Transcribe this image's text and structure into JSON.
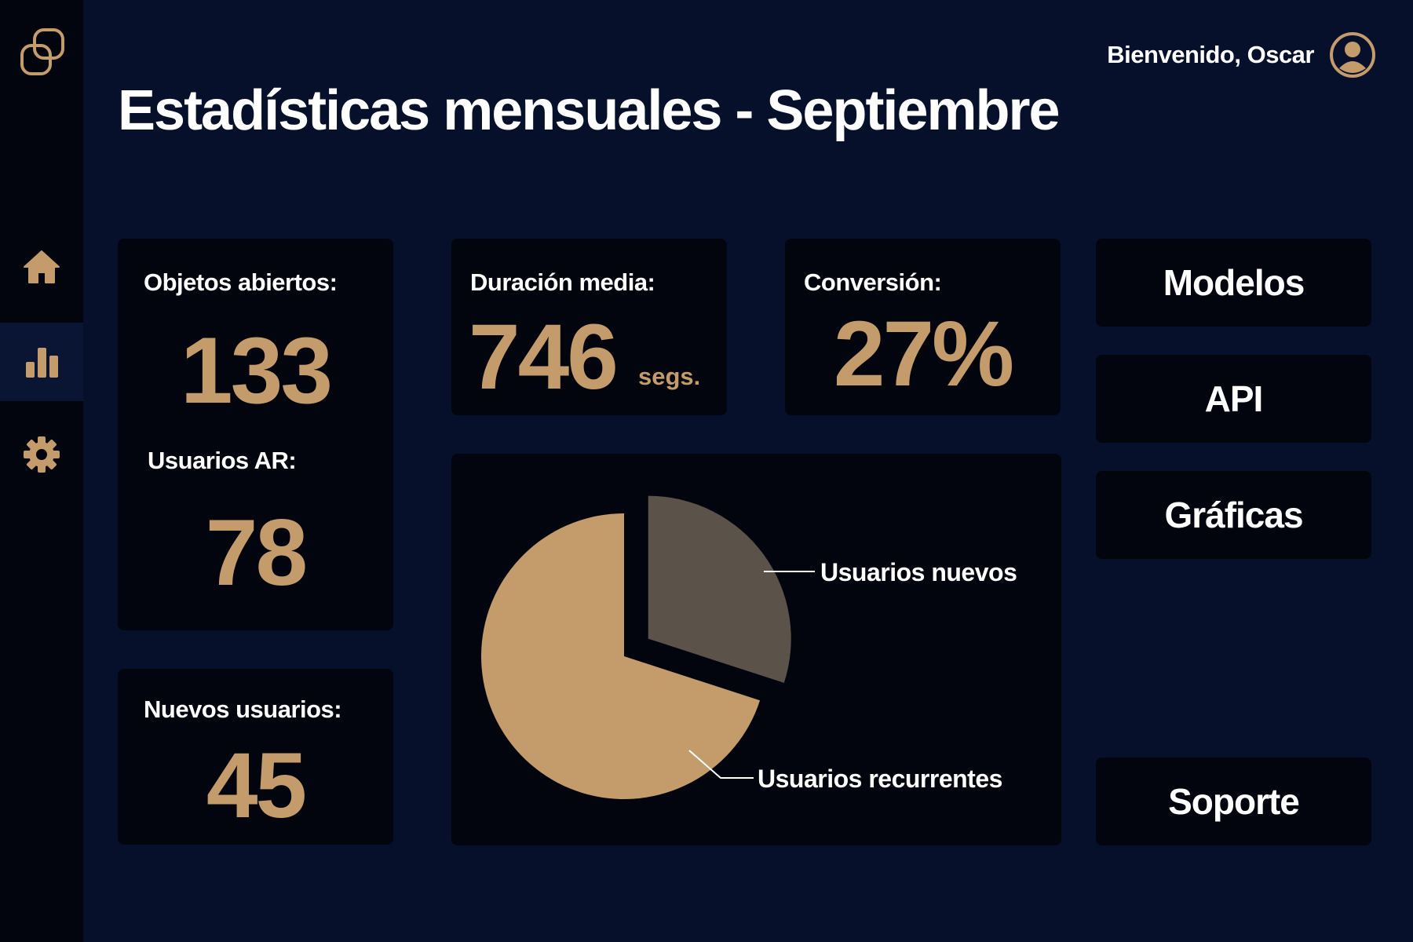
{
  "app": {
    "logo": "interlocked-squares-logo"
  },
  "sidebar": {
    "items": [
      {
        "icon": "home-icon",
        "active": false
      },
      {
        "icon": "bar-chart-icon",
        "active": true
      },
      {
        "icon": "gear-icon",
        "active": false
      }
    ]
  },
  "header": {
    "welcome": "Bienvenido, Oscar",
    "avatar_icon": "user-avatar-icon",
    "title": "Estadísticas mensuales - Septiembre"
  },
  "stats": {
    "objects_label": "Objetos abiertos:",
    "objects_value": "133",
    "ar_users_label": "Usuarios AR:",
    "ar_users_value": "78",
    "new_users_label": "Nuevos usuarios:",
    "new_users_value": "45",
    "duration_label": "Duración media:",
    "duration_value": "746",
    "duration_unit": "segs.",
    "conversion_label": "Conversión:",
    "conversion_value": "27%"
  },
  "nav_buttons": {
    "models": "Modelos",
    "api": "API",
    "charts": "Gráficas",
    "support": "Soporte"
  },
  "colors": {
    "background": "#07102a",
    "card": "#02040e",
    "accent": "#c49c6c",
    "slice_secondary": "#5b524a"
  },
  "chart_data": {
    "type": "pie",
    "title": "",
    "exploded": "Usuarios nuevos",
    "slices": [
      {
        "label": "Usuarios nuevos",
        "value": 30,
        "color": "#5b524a"
      },
      {
        "label": "Usuarios recurrentes",
        "value": 70,
        "color": "#c49c6c"
      }
    ]
  }
}
